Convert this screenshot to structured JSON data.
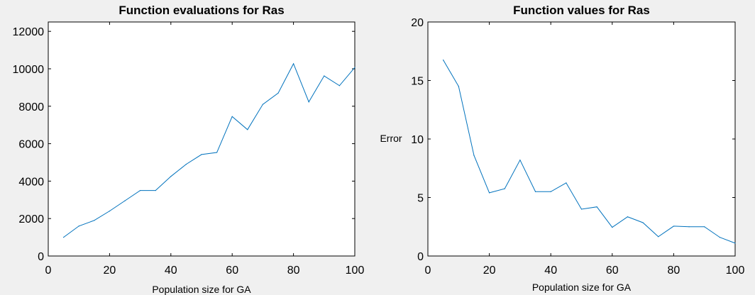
{
  "colors": {
    "background": "#f0f0f0",
    "plot_area": "#ffffff",
    "axes": "#000000",
    "series": "#0072bd"
  },
  "chart_data": [
    {
      "type": "line",
      "title": "Function evaluations for Ras",
      "xlabel": "Population size for GA",
      "ylabel": "",
      "xlim": [
        0,
        100
      ],
      "ylim": [
        0,
        12500
      ],
      "xticks": [
        0,
        20,
        40,
        60,
        80,
        100
      ],
      "yticks": [
        0,
        2000,
        4000,
        6000,
        8000,
        10000,
        12000
      ],
      "grid": false,
      "series": [
        {
          "x": [
            5,
            10,
            15,
            20,
            25,
            30,
            35,
            40,
            45,
            50,
            55,
            60,
            65,
            70,
            75,
            80,
            85,
            90,
            95,
            100
          ],
          "y": [
            1000,
            1600,
            1900,
            2400,
            2950,
            3500,
            3500,
            4250,
            4900,
            5420,
            5530,
            7450,
            6750,
            8100,
            8700,
            10270,
            8230,
            9620,
            9100,
            10070
          ]
        }
      ]
    },
    {
      "type": "line",
      "title": "Function values for Ras",
      "xlabel": "Population size for GA",
      "ylabel": "Error",
      "xlim": [
        0,
        100
      ],
      "ylim": [
        0,
        20
      ],
      "xticks": [
        0,
        20,
        40,
        60,
        80,
        100
      ],
      "yticks": [
        0,
        5,
        10,
        15,
        20
      ],
      "grid": false,
      "series": [
        {
          "x": [
            5,
            10,
            15,
            20,
            25,
            30,
            35,
            40,
            45,
            50,
            55,
            60,
            65,
            70,
            75,
            80,
            85,
            90,
            95,
            100
          ],
          "y": [
            16.75,
            14.5,
            8.6,
            5.4,
            5.75,
            8.2,
            5.5,
            5.5,
            6.25,
            4.0,
            4.2,
            2.45,
            3.35,
            2.85,
            1.65,
            2.55,
            2.5,
            2.5,
            1.6,
            1.1
          ]
        }
      ]
    }
  ]
}
